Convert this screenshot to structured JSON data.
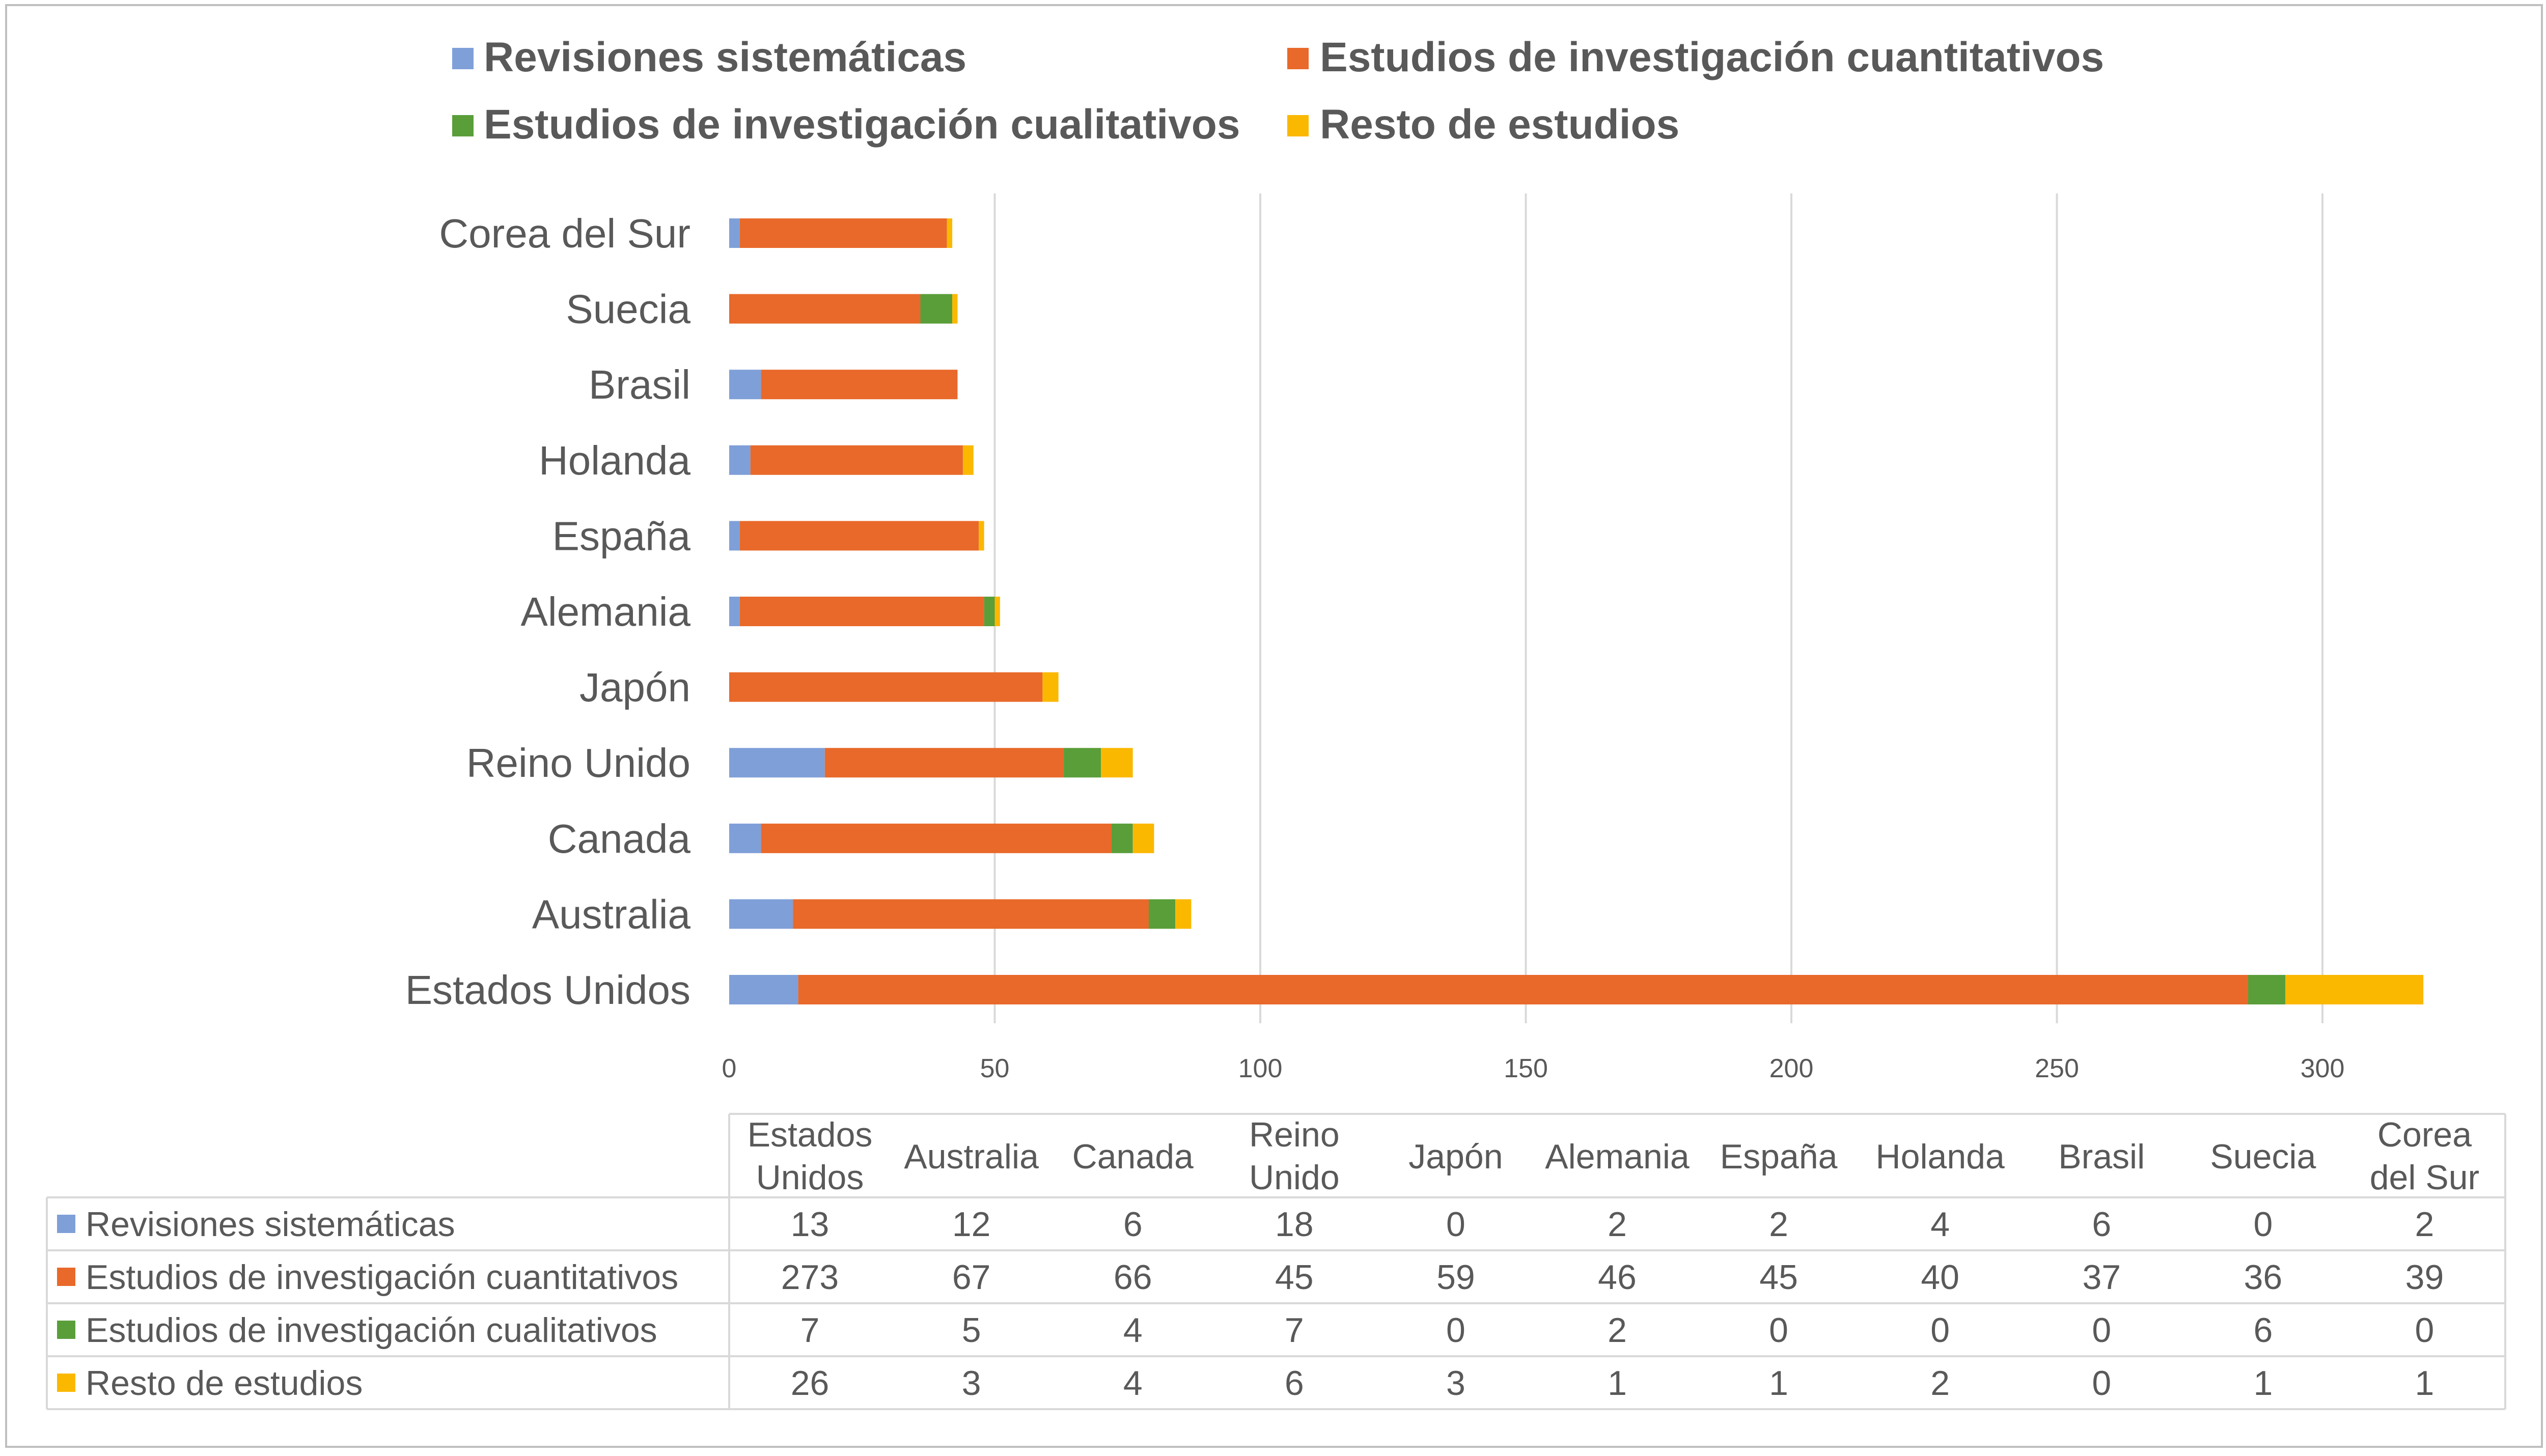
{
  "chart_data": {
    "type": "bar",
    "orientation": "horizontal",
    "stacked": true,
    "categories": [
      "Estados Unidos",
      "Australia",
      "Canada",
      "Reino Unido",
      "Japón",
      "Alemania",
      "España",
      "Holanda",
      "Brasil",
      "Suecia",
      "Corea del Sur"
    ],
    "category_display": [
      "Estados\nUnidos",
      "Australia",
      "Canada",
      "Reino\nUnido",
      "Japón",
      "Alemania",
      "España",
      "Holanda",
      "Brasil",
      "Suecia",
      "Corea\ndel Sur"
    ],
    "series": [
      {
        "name": "Revisiones sistemáticas",
        "color": "#7f9fd8",
        "values": [
          13,
          12,
          6,
          18,
          0,
          2,
          2,
          4,
          6,
          0,
          2
        ]
      },
      {
        "name": "Estudios de investigación cuantitativos",
        "color": "#e8692a",
        "values": [
          273,
          67,
          66,
          45,
          59,
          46,
          45,
          40,
          37,
          36,
          39
        ]
      },
      {
        "name": "Estudios de investigación cualitativos",
        "color": "#5a9e3a",
        "values": [
          7,
          5,
          4,
          7,
          0,
          2,
          0,
          0,
          0,
          6,
          0
        ]
      },
      {
        "name": "Resto de estudios",
        "color": "#fbb800",
        "values": [
          26,
          3,
          4,
          6,
          3,
          1,
          1,
          2,
          0,
          1,
          1
        ]
      }
    ],
    "xlim": [
      0,
      320
    ],
    "xticks": [
      "0",
      "50",
      "100",
      "150",
      "200",
      "250",
      "300"
    ],
    "grid": "vertical",
    "legend": "top",
    "data_table": true
  }
}
